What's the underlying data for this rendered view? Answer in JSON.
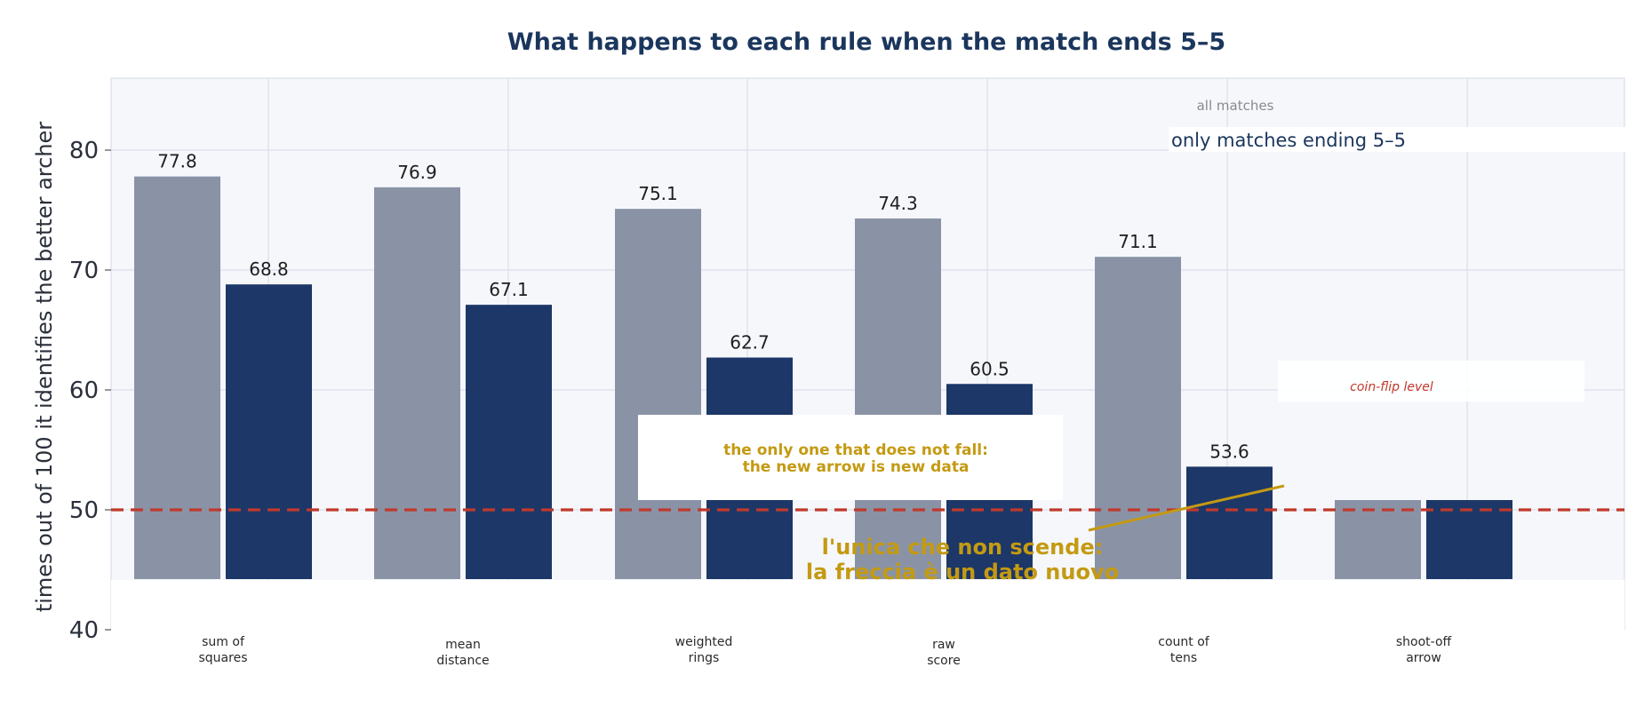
{
  "chart_data": {
    "type": "bar",
    "title": "What happens to each rule when the match ends 5–5",
    "ylabel": "times out of 100 it identifies the better archer",
    "xlabel": "",
    "ylim": [
      40,
      86
    ],
    "yticks": [
      40,
      50,
      60,
      70,
      80
    ],
    "grid": true,
    "categories": [
      "sum of\nsquares",
      "mean\ndistance",
      "weighted\nrings",
      "raw\nscore",
      "count of\ntens",
      "shoot-off\narrow"
    ],
    "series": [
      {
        "name": "all matches",
        "color": "#8a93a6",
        "values": [
          77.8,
          76.9,
          75.1,
          74.3,
          71.1,
          null
        ]
      },
      {
        "name": "only matches ending 5–5",
        "color": "#1c3768",
        "values": [
          68.8,
          67.1,
          62.7,
          60.5,
          53.6,
          null
        ]
      }
    ],
    "value_labels": [
      [
        "77.8",
        "76.9",
        "75.1",
        "74.3",
        "71.1",
        ""
      ],
      [
        "68.8",
        "67.1",
        "62.7",
        "60.5",
        "53.6",
        ""
      ]
    ],
    "reference_line": {
      "value": 50,
      "label": "coin-flip level",
      "color": "#c0392b"
    },
    "annotations": {
      "english": "the only one that does not fall:\nthe new arrow is new data",
      "italian": "l'unica che non scende:\nla freccia è un dato nuovo",
      "color": "#c49a12"
    },
    "legend": {
      "position": "top-right"
    }
  }
}
